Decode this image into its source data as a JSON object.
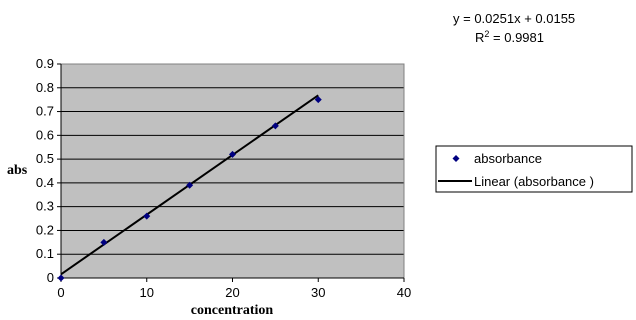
{
  "chart_data": {
    "type": "scatter",
    "title": "",
    "xlabel": "concentration",
    "ylabel": "abs",
    "xlim": [
      0,
      40
    ],
    "ylim": [
      0,
      0.9
    ],
    "x_ticks": [
      "0",
      "10",
      "20",
      "30",
      "40"
    ],
    "y_ticks": [
      "0",
      "0.1",
      "0.2",
      "0.3",
      "0.4",
      "0.5",
      "0.6",
      "0.7",
      "0.8",
      "0.9"
    ],
    "grid": "horizontal",
    "plot_background": "#c0c0c0",
    "marker_color": "#000080",
    "legend_position": "right",
    "series": [
      {
        "name": "absorbance",
        "x": [
          0,
          5,
          10,
          15,
          20,
          25,
          30
        ],
        "y": [
          0.0,
          0.15,
          0.26,
          0.39,
          0.52,
          0.64,
          0.75
        ]
      }
    ],
    "trendline": {
      "name": "Linear (absorbance )",
      "slope": 0.0251,
      "intercept": 0.0155,
      "x_range": [
        0,
        30
      ],
      "equation_label": "y = 0.0251x + 0.0155",
      "r2_prefix": "R",
      "r2_superscript": "2",
      "r2_suffix": " = 0.9981"
    }
  }
}
